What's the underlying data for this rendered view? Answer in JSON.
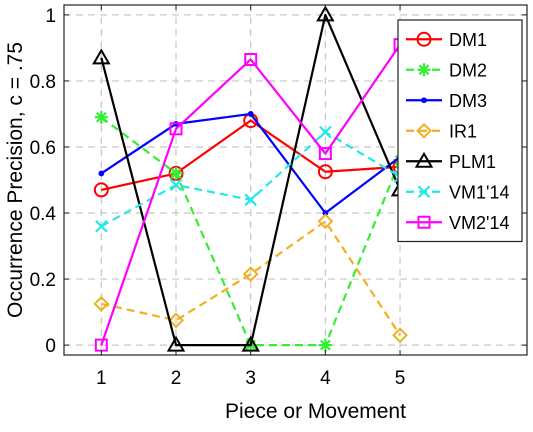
{
  "chart_data": {
    "type": "line",
    "title": "",
    "xlabel": "Piece or Movement",
    "ylabel": "Occurrence Precision, c = .75",
    "x": [
      1,
      2,
      3,
      4,
      5
    ],
    "xlim": [
      0.5,
      6.7
    ],
    "ylim": [
      -0.03,
      1.03
    ],
    "xticks": [
      "1",
      "2",
      "3",
      "4",
      "5"
    ],
    "yticks": [
      "0",
      "0.2",
      "0.4",
      "0.6",
      "0.8",
      "1"
    ],
    "grid": true,
    "legend_position": "top-right",
    "series": [
      {
        "name": "DM1",
        "values": [
          0.47,
          0.52,
          0.68,
          0.525,
          0.54
        ],
        "color": "#ff0000",
        "dash": "solid",
        "marker": "circle"
      },
      {
        "name": "DM2",
        "values": [
          0.69,
          0.52,
          0.0,
          0.0,
          0.56
        ],
        "color": "#33ee33",
        "dash": "dashed",
        "marker": "asterisk"
      },
      {
        "name": "DM3",
        "values": [
          0.52,
          0.67,
          0.7,
          0.4,
          0.57
        ],
        "color": "#0000ff",
        "dash": "solid",
        "marker": "point"
      },
      {
        "name": "IR1",
        "values": [
          0.125,
          0.075,
          0.215,
          0.375,
          0.03
        ],
        "color": "#f0b020",
        "dash": "dashed",
        "marker": "diamond"
      },
      {
        "name": "PLM1",
        "values": [
          0.87,
          0.0,
          0.0,
          1.0,
          0.47
        ],
        "color": "#000000",
        "dash": "solid",
        "marker": "triangle"
      },
      {
        "name": "VM1'14",
        "values": [
          0.36,
          0.485,
          0.44,
          0.645,
          0.51
        ],
        "color": "#22e8e8",
        "dash": "dashed",
        "marker": "x"
      },
      {
        "name": "VM2'14",
        "values": [
          0.0,
          0.655,
          0.865,
          0.58,
          0.91
        ],
        "color": "#ff00ff",
        "dash": "solid",
        "marker": "square"
      }
    ]
  }
}
